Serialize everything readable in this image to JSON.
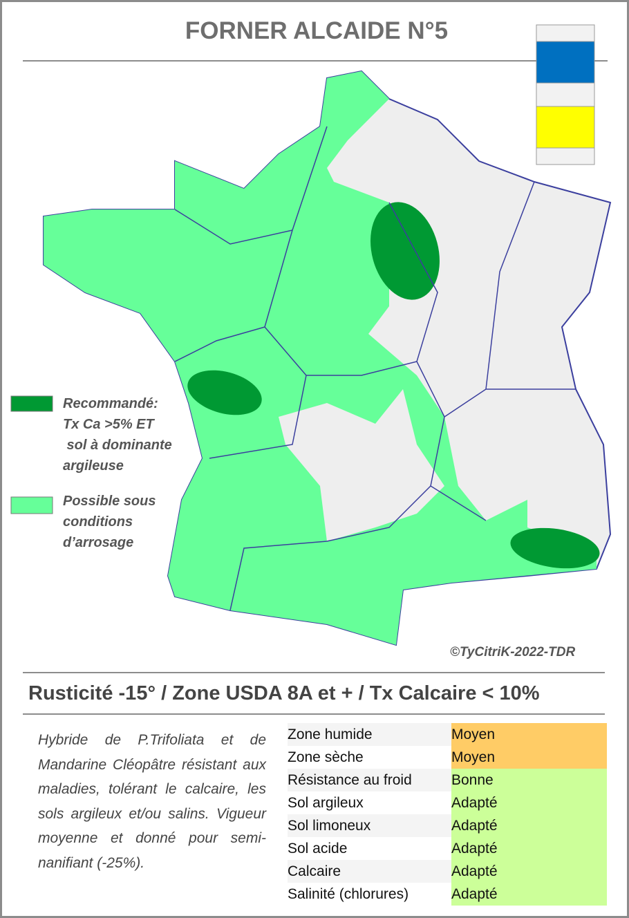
{
  "header": {
    "title": "FORNER ALCAIDE N°5"
  },
  "legend": [
    {
      "lines": [
        "Recommandé:",
        "Tx Ca >5% ET",
        " sol à dominante",
        "argileuse"
      ]
    },
    {
      "lines": [
        "Possible sous",
        "conditions",
        "d’arrosage"
      ]
    }
  ],
  "credit": "©TyCitriK-2022-TDR",
  "summary": "Rusticité -15° / Zone USDA 8A et + / Tx Calcaire < 10%",
  "description": "Hybride de P.Trifoliata et de Mandarine Cléopâtre résistant aux maladies, tolérant le calcaire, les sols argileux et/ou salins. Vigueur moyenne et donné pour semi-nanifiant (-25%).",
  "table": {
    "rows": [
      [
        "Zone humide",
        "Moyen"
      ],
      [
        "Zone sèche",
        "Moyen"
      ],
      [
        "Résistance au froid",
        "Bonne"
      ],
      [
        "Sol argileux",
        "Adapté"
      ],
      [
        "Sol limoneux",
        "Adapté"
      ],
      [
        "Sol acide",
        "Adapté"
      ],
      [
        "Calcaire",
        "Adapté"
      ],
      [
        "Salinité (chlorures)",
        "Adapté"
      ]
    ]
  }
}
